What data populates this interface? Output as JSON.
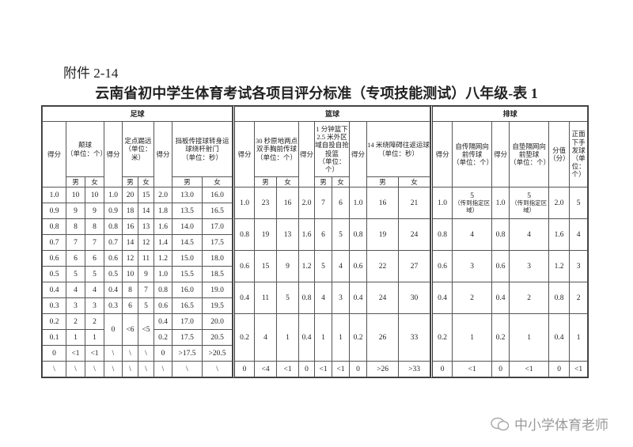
{
  "header": {
    "attachment": "附件 2-14",
    "title": "云南省初中学生体育考试各项目评分标准（专项技能测试）八年级-表 1"
  },
  "football": {
    "name": "足球",
    "columns": [
      {
        "label": "得分"
      },
      {
        "label": "颠球",
        "unit": "（单位：个）"
      },
      {
        "label": "得分"
      },
      {
        "label": "定点踢远",
        "unit": "（单位：米）"
      },
      {
        "label": "得分"
      },
      {
        "label": "挡板传接球转身运球绕杆射门",
        "unit": "（单位：秒）"
      }
    ],
    "gender_row": [
      "男",
      "女",
      "男",
      "女",
      "男",
      "女"
    ],
    "rows": [
      [
        "1.0",
        "10",
        "10",
        "1.0",
        "20",
        "15",
        "2.0",
        "13.0",
        "16.0"
      ],
      [
        "0.9",
        "9",
        "9",
        "0.9",
        "18",
        "14",
        "1.8",
        "13.5",
        "16.5"
      ],
      [
        "0.8",
        "8",
        "8",
        "0.8",
        "16",
        "13",
        "1.6",
        "14.0",
        "17.0"
      ],
      [
        "0.7",
        "7",
        "7",
        "0.7",
        "14",
        "12",
        "1.4",
        "14.5",
        "17.5"
      ],
      [
        "0.6",
        "6",
        "6",
        "0.6",
        "12",
        "11",
        "1.2",
        "15.0",
        "18.0"
      ],
      [
        "0.5",
        "5",
        "5",
        "0.5",
        "10",
        "9",
        "1.0",
        "15.5",
        "18.5"
      ],
      [
        "0.4",
        "4",
        "4",
        "0.4",
        "8",
        "7",
        "0.8",
        "16.0",
        "19.0"
      ],
      [
        "0.3",
        "3",
        "3",
        "0.3",
        "6",
        "5",
        "0.6",
        "16.5",
        "19.5"
      ],
      [
        "0.2",
        "2",
        "2",
        "0",
        "<6",
        "<5",
        "0.4",
        "17.0",
        "20.0"
      ],
      [
        "0.1",
        "1",
        "1",
        "0.2",
        "17.5",
        "20.5"
      ],
      [
        "0",
        "<1",
        "<1",
        "\\",
        "\\",
        "\\",
        "0",
        ">17.5",
        ">20.5"
      ],
      [
        "\\",
        "\\",
        "\\",
        "\\",
        "\\",
        "\\",
        "\\",
        "\\",
        "\\"
      ]
    ]
  },
  "basketball": {
    "name": "篮球",
    "columns": [
      {
        "label": "得分"
      },
      {
        "label": "30 秒原地两点双手胸前传球",
        "unit": "（单位：个）"
      },
      {
        "label": "得分"
      },
      {
        "label": "1 分钟篮下 2.5 米外区域自投自抢投篮",
        "unit": "（单位：个）"
      },
      {
        "label": "得分"
      },
      {
        "label": "14 米绕障碍往返运球",
        "unit": "（单位：秒）"
      }
    ],
    "gender_row": [
      "男",
      "女",
      "男",
      "女",
      "男",
      "女"
    ],
    "rows": [
      [
        "1.0",
        "23",
        "16",
        "2.0",
        "7",
        "6",
        "1.0",
        "16",
        "21"
      ],
      [
        "0.8",
        "19",
        "13",
        "1.6",
        "6",
        "5",
        "0.8",
        "19",
        "24"
      ],
      [
        "0.6",
        "15",
        "9",
        "1.2",
        "5",
        "4",
        "0.6",
        "22",
        "27"
      ],
      [
        "0.4",
        "11",
        "5",
        "0.8",
        "4",
        "3",
        "0.4",
        "24",
        "30"
      ],
      [
        "0.2",
        "4",
        "1",
        "0.4",
        "1",
        "1",
        "0.2",
        "26",
        "33"
      ],
      [
        "0",
        "<4",
        "<1",
        "0",
        "<1",
        "<1",
        "0",
        ">26",
        ">33"
      ]
    ]
  },
  "volleyball": {
    "name": "排球",
    "columns": [
      {
        "label": "得分"
      },
      {
        "label": "自传隔网向前传球",
        "unit": "（单位：个）"
      },
      {
        "label": "得分"
      },
      {
        "label": "自垫隔网向前垫球",
        "unit": "（单位：个）"
      },
      {
        "label": "分值",
        "unit": "（分）"
      },
      {
        "label": "正面下手发球",
        "unit": "（单位：个）"
      }
    ],
    "notes": [
      "（传到指定区域）",
      "（传到指定区域）"
    ],
    "rows": [
      [
        "1.0",
        "5",
        "1.0",
        "5",
        "2.0",
        "5"
      ],
      [
        "0.8",
        "4",
        "0.8",
        "4",
        "1.6",
        "4"
      ],
      [
        "0.6",
        "3",
        "0.6",
        "3",
        "1.2",
        "3"
      ],
      [
        "0.4",
        "2",
        "0.4",
        "2",
        "0.8",
        "2"
      ],
      [
        "0.2",
        "1",
        "0.2",
        "1",
        "0.4",
        "1"
      ],
      [
        "0",
        "<1",
        "0",
        "<1",
        "0",
        "<1"
      ]
    ]
  },
  "watermark": "中小学体育老师"
}
